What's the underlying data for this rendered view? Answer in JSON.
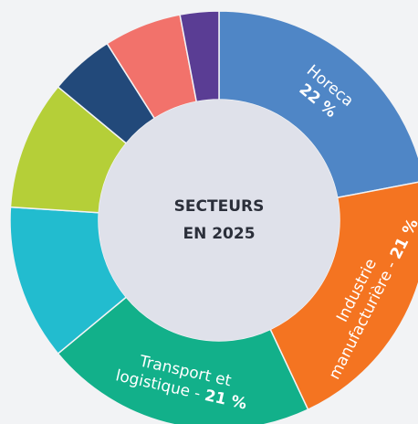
{
  "chart_data": {
    "type": "donut",
    "title_lines": [
      "SECTEURS",
      "EN 2025"
    ],
    "labels": [
      [
        "Horeca"
      ],
      [
        "Industrie",
        "manufacturière"
      ],
      [
        "Transport et",
        "logistique"
      ],
      null,
      null,
      null,
      null,
      null
    ],
    "separator": "-",
    "values": [
      22,
      21,
      21,
      12,
      10,
      5,
      6,
      3
    ],
    "value_labels": [
      "22 %",
      "21 %",
      "21 %",
      null,
      null,
      null,
      null,
      null
    ],
    "colors": [
      "#4f86c6",
      "#f47421",
      "#12b08a",
      "#22bccf",
      "#b5cf38",
      "#22497a",
      "#f2726b",
      "#5a3d94"
    ]
  }
}
